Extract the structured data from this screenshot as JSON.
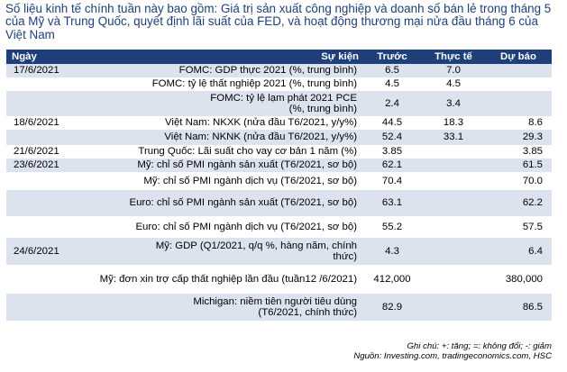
{
  "title": "Số liệu kinh tế chính tuần này bao gồm: Giá trị sản xuất công nghiệp và doanh số bán lẻ trong tháng 5 của Mỹ và Trung Quốc, quyết định lãi suất của FED, và hoạt động thương mại nửa đầu tháng 6 của Việt Nam",
  "headers": {
    "date": "Ngày",
    "event": "Sự kiện",
    "before": "Trước",
    "actual": "Thực tế",
    "forecast": "Dự báo"
  },
  "rows": [
    {
      "date": "17/6/2021",
      "event": "FOMC: GDP thực 2021 (%, trung bình)",
      "before": "6.5",
      "actual": "7.0",
      "forecast": ""
    },
    {
      "date": "",
      "event": "FOMC: tỷ lệ thất nghiệp 2021 (%, trung bình)",
      "before": "4.5",
      "actual": "4.5",
      "forecast": ""
    },
    {
      "date": "",
      "event": "FOMC: tỷ lệ lạm phát 2021 PCE (%, trung bình)",
      "before": "2.4",
      "actual": "3.4",
      "forecast": ""
    },
    {
      "date": "18/6/2021",
      "event": "Việt Nam: NKXK (nửa đầu T6/2021, y/y%)",
      "before": "44.5",
      "actual": "18.3",
      "forecast": "8.6"
    },
    {
      "date": "",
      "event": "Việt Nam: NKNK (nửa đầu T6/2021, y/y%)",
      "before": "52.4",
      "actual": "33.1",
      "forecast": "29.3"
    },
    {
      "date": "21/6/2021",
      "event": "Trung Quốc: Lãi suất cho vay cơ bản 1 năm (%)",
      "before": "3.85",
      "actual": "",
      "forecast": "3.85"
    },
    {
      "date": "23/6/2021",
      "event": "Mỹ: chỉ số PMI ngành sản xuất (T6/2021, sơ bộ)",
      "before": "62.1",
      "actual": "",
      "forecast": "61.5"
    },
    {
      "date": "",
      "event": "Mỹ: chỉ số PMI ngành dịch vụ (T6/2021, sơ bộ)",
      "before": "70.4",
      "actual": "",
      "forecast": "70.0"
    },
    {
      "date": "",
      "event": "Euro: chỉ số PMI ngành sản xuất (T6/2021, sơ bộ)",
      "before": "63.1",
      "actual": "",
      "forecast": "62.2"
    },
    {
      "date": "",
      "event": "Euro: chỉ số PMI ngành dịch vụ (T6/2021, sơ bộ)",
      "before": "55.2",
      "actual": "",
      "forecast": "57.5"
    },
    {
      "date": "24/6/2021",
      "event": "Mỹ: GDP (Q1/2021, q/q %, hàng năm, chính thức)",
      "before": "4.3",
      "actual": "",
      "forecast": "6.4"
    },
    {
      "date": "",
      "event": "Mỹ: đơn xin trợ cấp thất nghiệp lần đầu (tuần12 /6/2021)",
      "before": "412,000",
      "actual": "",
      "forecast": "380,000"
    },
    {
      "date": "",
      "event": "Michigan: niềm tiên người tiêu dùng (T6/2021, chính thức)",
      "before": "82.9",
      "actual": "",
      "forecast": "86.5"
    }
  ],
  "note": "Ghi chú: +: tăng; =: không đổi; -: giảm",
  "source": "Nguồn: Investing.com, tradingeconomics.com, HSC",
  "colors": {
    "header_bg": "#1f3f7a",
    "shade_bg": "#dce3ef",
    "title_text": "#1f3f7a"
  }
}
